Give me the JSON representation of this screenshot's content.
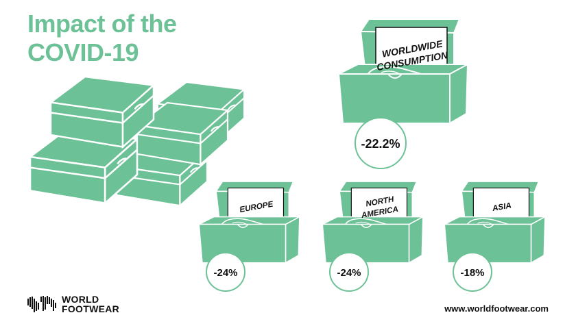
{
  "title": {
    "line1": "Impact of the",
    "line2": "COVID-19"
  },
  "regions": [
    {
      "label_lines": [
        "WORLDWIDE",
        "CONSUMPTION"
      ],
      "value": "-22.2%"
    },
    {
      "label_lines": [
        "EUROPE"
      ],
      "value": "-24%"
    },
    {
      "label_lines": [
        "NORTH",
        "AMERICA"
      ],
      "value": "-24%"
    },
    {
      "label_lines": [
        "ASIA"
      ],
      "value": "-18%"
    }
  ],
  "brand": {
    "line1": "WORLD",
    "line2": "FOOTWEAR"
  },
  "website": "www.worldfootwear.com",
  "colors": {
    "accent": "#6cc196",
    "outline": "#ffffff",
    "text": "#111111"
  }
}
